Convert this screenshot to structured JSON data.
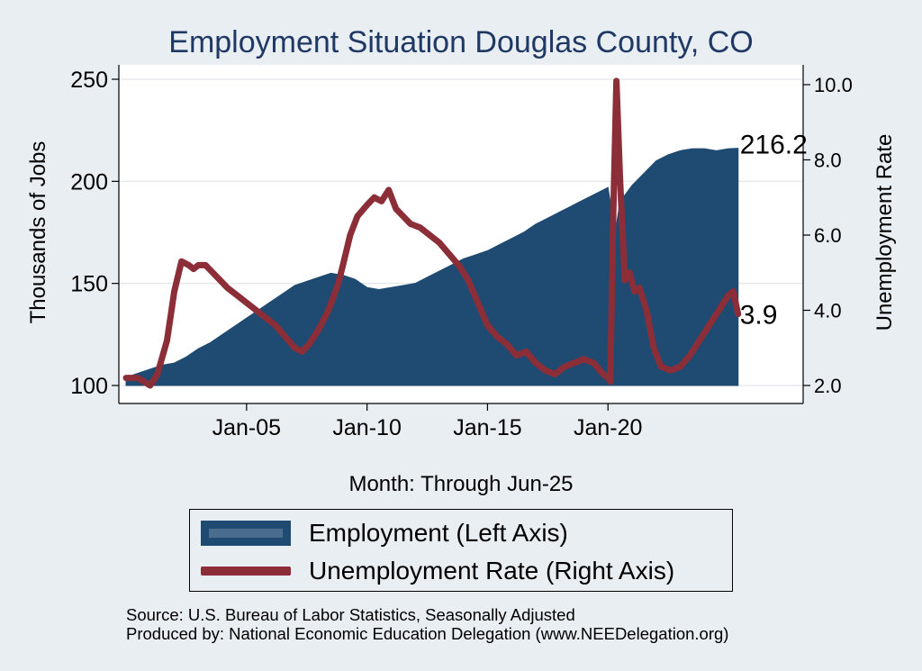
{
  "chart_data": {
    "type": "area+line",
    "title": "Employment Situation Douglas  County, CO",
    "xlabel": "Month: Through Jun-25",
    "ylabel_left": "Thousands of Jobs",
    "ylabel_right": "Unemployment Rate",
    "x_ticks": [
      "Jan-05",
      "Jan-10",
      "Jan-15",
      "Jan-20"
    ],
    "x_tick_dates": [
      2005.0,
      2010.0,
      2015.0,
      2020.0
    ],
    "x_range": [
      2000.0,
      2025.5
    ],
    "left_axis": {
      "ylim": [
        100,
        250
      ],
      "ticks": [
        100,
        150,
        200,
        250
      ]
    },
    "right_axis": {
      "ylim": [
        2.0,
        10.0
      ],
      "ticks": [
        "2.0",
        "4.0",
        "6.0",
        "8.0",
        "10.0"
      ]
    },
    "series": [
      {
        "name": "Employment (Left Axis)",
        "type": "area",
        "color": "#1f4a72",
        "x": [
          2000.0,
          2000.5,
          2001.0,
          2001.5,
          2002.0,
          2002.5,
          2003.0,
          2003.5,
          2004.0,
          2004.5,
          2005.0,
          2005.5,
          2006.0,
          2006.5,
          2007.0,
          2007.5,
          2008.0,
          2008.5,
          2009.0,
          2009.5,
          2010.0,
          2010.5,
          2011.0,
          2011.5,
          2012.0,
          2012.5,
          2013.0,
          2013.5,
          2014.0,
          2014.5,
          2015.0,
          2015.5,
          2016.0,
          2016.5,
          2017.0,
          2017.5,
          2018.0,
          2018.5,
          2019.0,
          2019.5,
          2020.0,
          2020.3,
          2020.5,
          2021.0,
          2021.5,
          2022.0,
          2022.5,
          2023.0,
          2023.5,
          2024.0,
          2024.5,
          2025.0,
          2025.4
        ],
        "values": [
          104,
          106,
          108,
          110,
          111,
          114,
          118,
          121,
          125,
          129,
          133,
          137,
          141,
          145,
          149,
          151,
          153,
          155,
          154,
          152,
          148,
          147,
          148,
          149,
          150,
          153,
          156,
          159,
          162,
          164,
          166,
          169,
          172,
          175,
          179,
          182,
          185,
          188,
          191,
          194,
          197,
          175,
          190,
          198,
          204,
          210,
          213,
          215,
          216,
          216,
          215,
          216,
          216.2
        ]
      },
      {
        "name": "Unemployment Rate (Right Axis)",
        "type": "line",
        "axis": "right",
        "color": "#8b2e38",
        "x": [
          2000.0,
          2000.5,
          2001.0,
          2001.3,
          2001.7,
          2002.0,
          2002.3,
          2002.6,
          2002.8,
          2003.0,
          2003.3,
          2003.6,
          2003.9,
          2004.2,
          2004.6,
          2005.0,
          2005.4,
          2005.8,
          2006.2,
          2006.6,
          2007.0,
          2007.3,
          2007.6,
          2008.0,
          2008.4,
          2008.8,
          2009.0,
          2009.3,
          2009.6,
          2010.0,
          2010.3,
          2010.6,
          2010.9,
          2011.2,
          2011.5,
          2011.8,
          2012.2,
          2012.6,
          2013.0,
          2013.4,
          2013.8,
          2014.2,
          2014.6,
          2015.0,
          2015.4,
          2015.8,
          2016.2,
          2016.6,
          2017.0,
          2017.4,
          2017.8,
          2018.2,
          2018.6,
          2019.0,
          2019.4,
          2019.8,
          2020.0,
          2020.1,
          2020.2,
          2020.35,
          2020.5,
          2020.7,
          2020.9,
          2021.1,
          2021.3,
          2021.6,
          2021.9,
          2022.2,
          2022.6,
          2023.0,
          2023.4,
          2023.8,
          2024.2,
          2024.6,
          2025.0,
          2025.2,
          2025.4
        ],
        "values": [
          2.2,
          2.2,
          2.0,
          2.3,
          3.2,
          4.5,
          5.3,
          5.2,
          5.1,
          5.2,
          5.2,
          5.0,
          4.8,
          4.6,
          4.4,
          4.2,
          4.0,
          3.8,
          3.6,
          3.3,
          3.0,
          2.9,
          3.1,
          3.5,
          4.0,
          4.7,
          5.2,
          6.0,
          6.5,
          6.8,
          7.0,
          6.9,
          7.2,
          6.7,
          6.5,
          6.3,
          6.2,
          6.0,
          5.8,
          5.5,
          5.2,
          4.8,
          4.2,
          3.6,
          3.3,
          3.1,
          2.8,
          2.9,
          2.6,
          2.4,
          2.3,
          2.5,
          2.6,
          2.7,
          2.6,
          2.3,
          2.2,
          2.1,
          6.0,
          10.1,
          7.5,
          4.8,
          5.0,
          4.5,
          4.6,
          4.0,
          3.0,
          2.5,
          2.4,
          2.5,
          2.8,
          3.2,
          3.6,
          4.0,
          4.4,
          4.5,
          3.9
        ]
      }
    ],
    "end_labels": {
      "employment": "216.2",
      "unemployment": "3.9"
    },
    "legend": {
      "position": "bottom",
      "entries": [
        "Employment (Left Axis)",
        "Unemployment Rate (Right Axis)"
      ]
    },
    "grid": true,
    "source_lines": [
      "Source: U.S. Bureau of Labor Statistics, Seasonally Adjusted",
      "Produced by: National Economic Education Delegation (www.NEEDelegation.org)"
    ]
  }
}
